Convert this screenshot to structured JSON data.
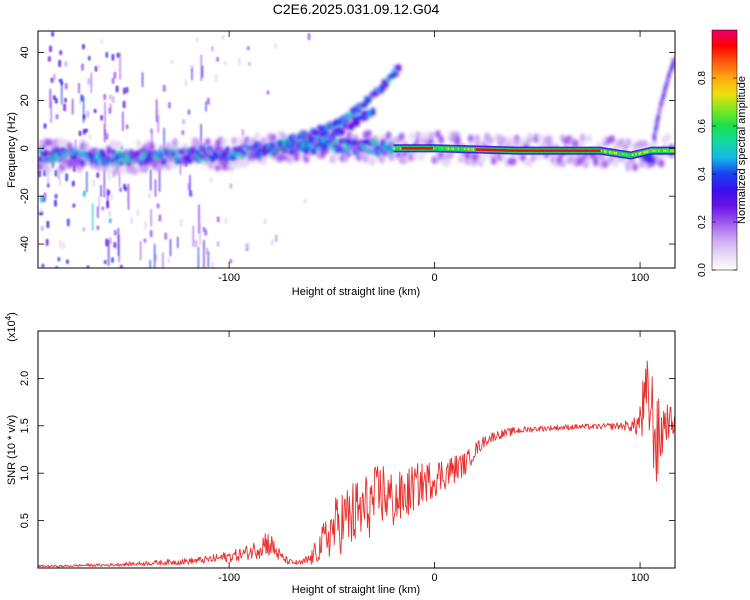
{
  "title": "C2E6.2025.031.09.12.G04",
  "colors": {
    "snr_line": "#e8302e",
    "frame": "#000000",
    "colormap": [
      "#ffffff",
      "#e6d8f5",
      "#c9a3f2",
      "#9d55ee",
      "#6a12e6",
      "#3a10ee",
      "#1a40f0",
      "#14b8e8",
      "#14d8a0",
      "#18e050",
      "#7ee820",
      "#f0e010",
      "#ffa810",
      "#ff5a10",
      "#ff0000",
      "#e80070"
    ]
  },
  "chart_data": [
    {
      "type": "heatmap",
      "xlabel": "Height of straight line (km)",
      "ylabel": "Frequency (Hz)",
      "xlim": [
        -193,
        117
      ],
      "ylim": [
        -50,
        49
      ],
      "xticks": [
        -100,
        0,
        100
      ],
      "xtick_labels": [
        "-100",
        "0",
        "100"
      ],
      "yticks": [
        -40,
        -20,
        0,
        20,
        40
      ],
      "ytick_labels": [
        "-40",
        "-20",
        "0",
        "20",
        "40"
      ],
      "colorbar": {
        "label": "Normalized spectral amplitude",
        "range": [
          0,
          1
        ],
        "ticks": [
          0.0,
          0.2,
          0.4,
          0.6,
          0.8
        ],
        "tick_labels": [
          "0.0",
          "0.2",
          "0.4",
          "0.6",
          "0.8"
        ]
      },
      "ridges": [
        {
          "feature": "main_band",
          "points": [
            [
              -190,
              -3
            ],
            [
              -150,
              -4
            ],
            [
              -120,
              -3
            ],
            [
              -100,
              -2
            ],
            [
              -80,
              0
            ],
            [
              -60,
              1
            ],
            [
              -40,
              1
            ],
            [
              -20,
              0
            ],
            [
              0,
              0
            ],
            [
              40,
              -1
            ],
            [
              80,
              -1
            ],
            [
              95,
              -3
            ],
            [
              105,
              -1
            ],
            [
              117,
              -1
            ]
          ]
        },
        {
          "feature": "rising_branch",
          "points": [
            [
              -75,
              2
            ],
            [
              -60,
              6
            ],
            [
              -45,
              11
            ],
            [
              -35,
              18
            ],
            [
              -25,
              26
            ],
            [
              -17,
              34
            ]
          ]
        },
        {
          "feature": "secondary_branch",
          "points": [
            [
              -60,
              3
            ],
            [
              -50,
              6
            ],
            [
              -42,
              9
            ],
            [
              -30,
              16
            ]
          ]
        },
        {
          "feature": "high_end_up",
          "points": [
            [
              107,
              5
            ],
            [
              110,
              18
            ],
            [
              114,
              30
            ],
            [
              117,
              38
            ]
          ]
        },
        {
          "feature": "high_end_down",
          "points": [
            [
              106,
              -4
            ],
            [
              104,
              -10
            ],
            [
              102,
              -19
            ]
          ]
        }
      ]
    },
    {
      "type": "line",
      "xlabel": "Height of straight line (km)",
      "ylabel": "SNR (10 * v/v)",
      "y_multiplier": "(x10^4)",
      "xlim": [
        -193,
        117
      ],
      "ylim": [
        0,
        2.5
      ],
      "xticks": [
        -100,
        0,
        100
      ],
      "xtick_labels": [
        "-100",
        "0",
        "100"
      ],
      "yticks": [
        0.5,
        1.0,
        1.5,
        2.0
      ],
      "ytick_labels": [
        "0.5",
        "1.0",
        "1.5",
        "2.0"
      ],
      "series": [
        {
          "x": [
            -193,
            -180,
            -170,
            -160,
            -150,
            -140,
            -130,
            -120,
            -110,
            -100,
            -95,
            -90,
            -85,
            -82,
            -78,
            -75,
            -72,
            -70,
            -65,
            -60,
            -55,
            -50,
            -45,
            -40,
            -35,
            -30,
            -25,
            -20,
            -15,
            -10,
            -5,
            0,
            5,
            10,
            15,
            20,
            25,
            30,
            40,
            50,
            60,
            70,
            80,
            90,
            95,
            98,
            100,
            102,
            104,
            106,
            108,
            110,
            112,
            115,
            117
          ],
          "y": [
            0.02,
            0.02,
            0.03,
            0.03,
            0.04,
            0.05,
            0.06,
            0.07,
            0.09,
            0.12,
            0.14,
            0.17,
            0.22,
            0.28,
            0.2,
            0.12,
            0.08,
            0.06,
            0.05,
            0.1,
            0.25,
            0.4,
            0.5,
            0.55,
            0.6,
            0.7,
            0.8,
            0.7,
            0.75,
            0.85,
            0.9,
            0.95,
            1.0,
            1.05,
            1.1,
            1.25,
            1.35,
            1.4,
            1.45,
            1.47,
            1.48,
            1.49,
            1.49,
            1.5,
            1.5,
            1.5,
            1.55,
            1.7,
            1.8,
            1.6,
            1.3,
            1.4,
            1.55,
            1.55,
            1.5
          ],
          "noise": [
            0.01,
            0.01,
            0.015,
            0.015,
            0.02,
            0.025,
            0.03,
            0.035,
            0.04,
            0.06,
            0.07,
            0.08,
            0.12,
            0.15,
            0.12,
            0.06,
            0.04,
            0.03,
            0.03,
            0.08,
            0.18,
            0.3,
            0.35,
            0.38,
            0.38,
            0.35,
            0.35,
            0.3,
            0.28,
            0.25,
            0.22,
            0.2,
            0.18,
            0.15,
            0.12,
            0.08,
            0.06,
            0.05,
            0.04,
            0.03,
            0.03,
            0.03,
            0.03,
            0.04,
            0.06,
            0.1,
            0.25,
            0.4,
            0.45,
            0.5,
            0.5,
            0.4,
            0.25,
            0.15,
            0.1
          ]
        }
      ]
    }
  ]
}
